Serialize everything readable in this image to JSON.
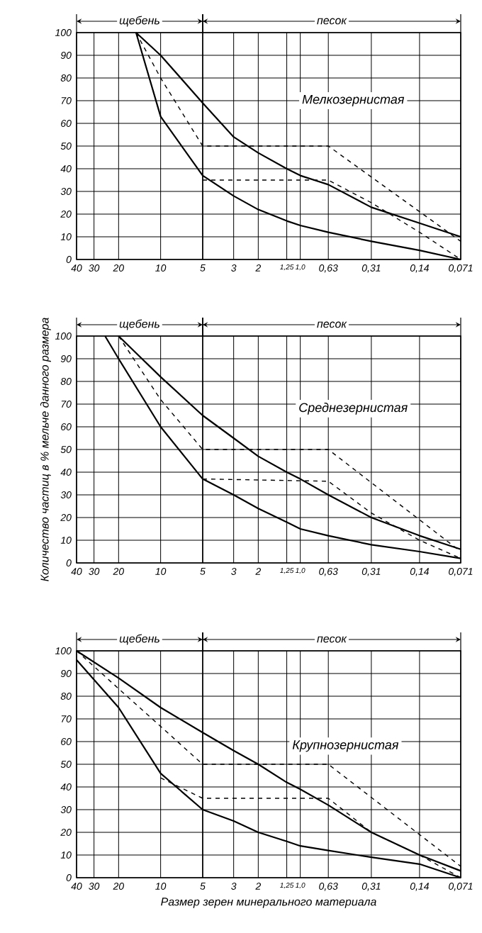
{
  "chart_data": [
    {
      "type": "line",
      "log": "x",
      "grid": true,
      "xlim": [
        40,
        0.071
      ],
      "ylim": [
        0,
        100
      ],
      "xticks": [
        40,
        30,
        20,
        10,
        5,
        3,
        2,
        {
          "value": 1.25,
          "label": "1,25"
        },
        {
          "value": 1.0,
          "label": "1,0"
        },
        {
          "value": 0.63,
          "label": "0,63"
        },
        {
          "value": 0.31,
          "label": "0,31"
        },
        {
          "value": 0.14,
          "label": "0,14"
        },
        {
          "value": 0.071,
          "label": "0,071"
        }
      ],
      "yticks": [
        0,
        10,
        20,
        30,
        40,
        50,
        60,
        70,
        80,
        90,
        100
      ],
      "annotations": [
        "Мелкозернистая",
        "щебень",
        "песок"
      ],
      "ref_lines": [
        {
          "axis": "x",
          "value": 5
        }
      ],
      "series": [
        {
          "color": "#000000",
          "line_style": "solid",
          "x": [
            15,
            10,
            5,
            3,
            2,
            1.25,
            1.0,
            0.63,
            0.31,
            0.14,
            0.071
          ],
          "values": [
            100,
            90,
            69,
            54,
            47,
            40,
            37,
            33,
            23,
            16,
            10
          ]
        },
        {
          "color": "#000000",
          "line_style": "solid",
          "x": [
            15,
            10,
            5,
            3,
            2,
            1.25,
            1.0,
            0.63,
            0.31,
            0.14,
            0.071
          ],
          "values": [
            100,
            63,
            37,
            28,
            22,
            17,
            15,
            12,
            8,
            4,
            0
          ]
        },
        {
          "color": "#000000",
          "line_style": "dashed",
          "x": [
            15,
            10,
            5,
            0.63,
            0.071
          ],
          "values": [
            100,
            80,
            50,
            50,
            8
          ]
        },
        {
          "color": "#000000",
          "line_style": "dashed",
          "x": [
            5,
            0.63,
            0.31,
            0.14,
            0.071
          ],
          "values": [
            35,
            35,
            25,
            12,
            0
          ]
        }
      ]
    },
    {
      "type": "line",
      "log": "x",
      "grid": true,
      "xlim": [
        40,
        0.071
      ],
      "ylim": [
        0,
        100
      ],
      "xticks": [
        40,
        30,
        20,
        10,
        5,
        3,
        2,
        {
          "value": 1.25,
          "label": "1,25"
        },
        {
          "value": 1.0,
          "label": "1,0"
        },
        {
          "value": 0.63,
          "label": "0,63"
        },
        {
          "value": 0.31,
          "label": "0,31"
        },
        {
          "value": 0.14,
          "label": "0,14"
        },
        {
          "value": 0.071,
          "label": "0,071"
        }
      ],
      "yticks": [
        0,
        10,
        20,
        30,
        40,
        50,
        60,
        70,
        80,
        90,
        100
      ],
      "ylabel": "Количество частиц в % мельче данного размера",
      "annotations": [
        "Среднезернистая",
        "щебень",
        "песок"
      ],
      "ref_lines": [
        {
          "axis": "x",
          "value": 5
        }
      ],
      "series": [
        {
          "color": "#000000",
          "line_style": "solid",
          "x": [
            20,
            10,
            5,
            3,
            2,
            1.25,
            1.0,
            0.63,
            0.31,
            0.14,
            0.071
          ],
          "values": [
            100,
            82,
            65,
            55,
            47,
            40,
            37,
            30,
            20,
            12,
            6
          ]
        },
        {
          "color": "#000000",
          "line_style": "solid",
          "x": [
            25,
            20,
            10,
            5,
            3,
            2,
            1.25,
            1.0,
            0.63,
            0.31,
            0.14,
            0.071
          ],
          "values": [
            100,
            90,
            60,
            37,
            30,
            24,
            18,
            15,
            12,
            8,
            5,
            2
          ]
        },
        {
          "color": "#000000",
          "line_style": "dashed",
          "x": [
            20,
            10,
            5,
            0.63,
            0.071
          ],
          "values": [
            100,
            72,
            50,
            50,
            5
          ]
        },
        {
          "color": "#000000",
          "line_style": "dashed",
          "x": [
            5,
            0.63,
            0.31,
            0.14,
            0.071
          ],
          "values": [
            37,
            36,
            22,
            10,
            2
          ]
        }
      ]
    },
    {
      "type": "line",
      "log": "x",
      "grid": true,
      "xlim": [
        40,
        0.071
      ],
      "ylim": [
        0,
        100
      ],
      "xticks": [
        40,
        30,
        20,
        10,
        5,
        3,
        2,
        {
          "value": 1.25,
          "label": "1,25"
        },
        {
          "value": 1.0,
          "label": "1,0"
        },
        {
          "value": 0.63,
          "label": "0,63"
        },
        {
          "value": 0.31,
          "label": "0,31"
        },
        {
          "value": 0.14,
          "label": "0,14"
        },
        {
          "value": 0.071,
          "label": "0,071"
        }
      ],
      "yticks": [
        0,
        10,
        20,
        30,
        40,
        50,
        60,
        70,
        80,
        90,
        100
      ],
      "xlabel": "Размер зерен минерального материала",
      "annotations": [
        "Крупнозернистая",
        "щебень",
        "песок"
      ],
      "ref_lines": [
        {
          "axis": "x",
          "value": 5
        }
      ],
      "series": [
        {
          "color": "#000000",
          "line_style": "solid",
          "x": [
            40,
            20,
            10,
            5,
            3,
            2,
            1.25,
            1.0,
            0.63,
            0.31,
            0.14,
            0.071
          ],
          "values": [
            100,
            88,
            75,
            64,
            56,
            50,
            42,
            39,
            32,
            20,
            10,
            3
          ]
        },
        {
          "color": "#000000",
          "line_style": "solid",
          "x": [
            40,
            20,
            10,
            5,
            3,
            2,
            1.25,
            1.0,
            0.63,
            0.31,
            0.14,
            0.071
          ],
          "values": [
            96,
            75,
            46,
            30,
            25,
            20,
            16,
            14,
            12,
            9,
            6,
            0
          ]
        },
        {
          "color": "#000000",
          "line_style": "dashed",
          "x": [
            40,
            5,
            0.63,
            0.071
          ],
          "values": [
            100,
            50,
            50,
            5
          ]
        },
        {
          "color": "#000000",
          "line_style": "dashed",
          "x": [
            10,
            5,
            0.63,
            0.31,
            0.14,
            0.071
          ],
          "values": [
            44,
            35,
            35,
            20,
            10,
            0
          ]
        }
      ]
    }
  ]
}
